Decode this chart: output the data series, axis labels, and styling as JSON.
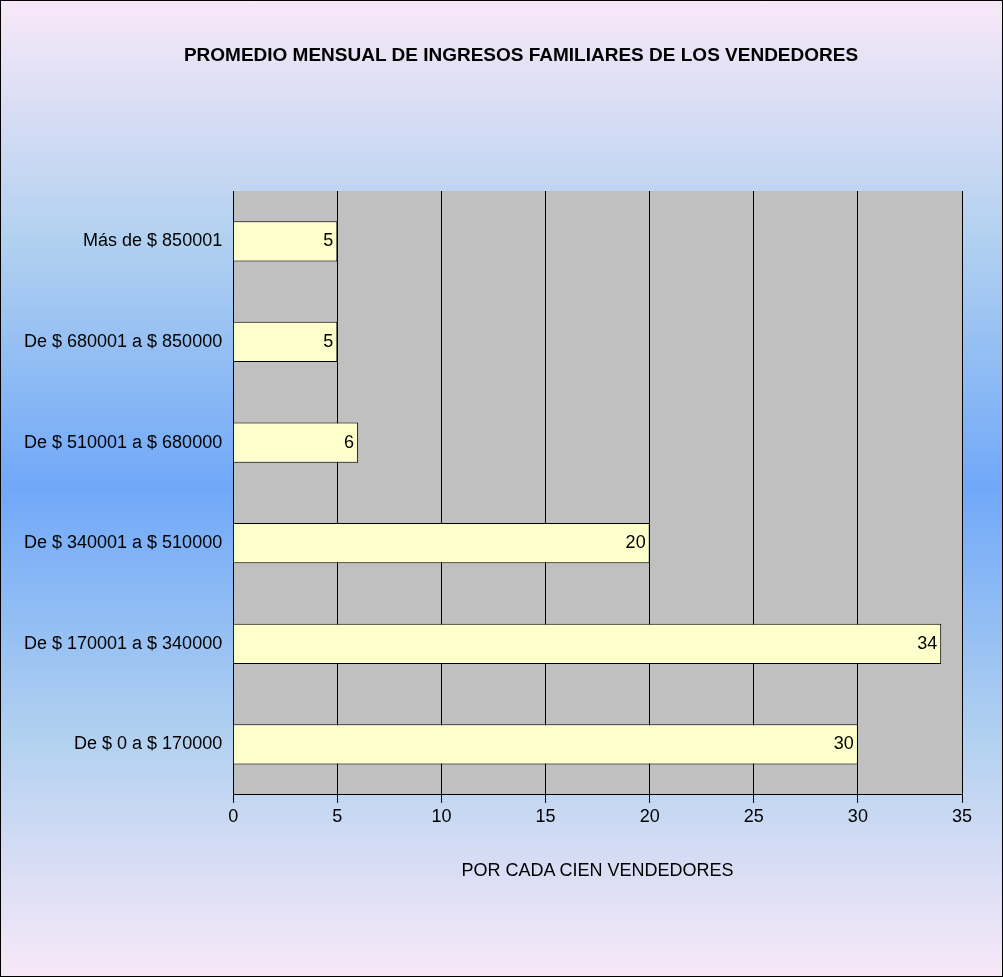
{
  "chart_data": {
    "type": "bar",
    "orientation": "horizontal",
    "title": "PROMEDIO MENSUAL DE  INGRESOS FAMILIARES  DE LOS VENDEDORES",
    "categories": [
      "Más de $ 850001",
      "De $ 680001 a $ 850000",
      "De $ 510001 a $ 680000",
      "De $ 340001 a $ 510000",
      "De $ 170001 a $ 340000",
      "De $ 0 a $ 170000"
    ],
    "values": [
      5,
      5,
      6,
      20,
      34,
      30
    ],
    "color": "#ffffcc",
    "xlim": [
      0,
      35
    ],
    "xticks": [
      0,
      5,
      10,
      15,
      20,
      25,
      30,
      35
    ],
    "xlabel": "POR CADA CIEN VENDEDORES",
    "grid": "x",
    "legend": false,
    "data_labels": true
  }
}
